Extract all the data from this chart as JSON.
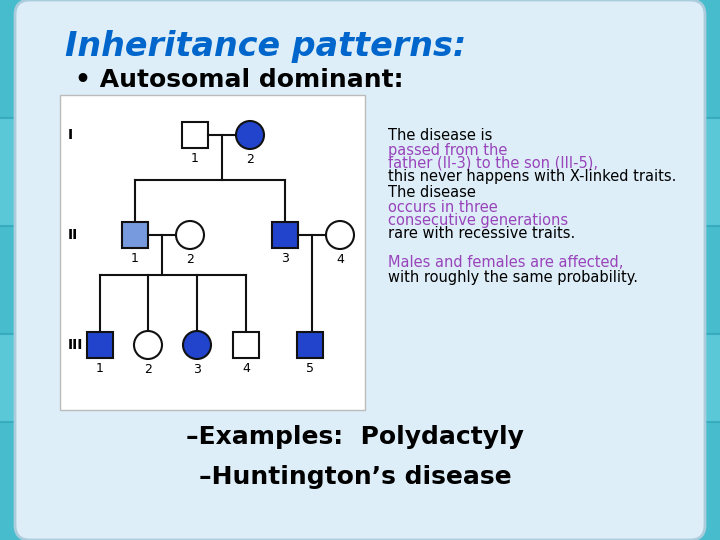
{
  "title": "Inheritance patterns:",
  "title_color": "#0066CC",
  "subtitle": "• Autosomal dominant:",
  "subtitle_color": "#000000",
  "bg_color_outer": "#5BC8D8",
  "bg_color_inner": "#C5E8F0",
  "example1": "–Examples:  Polydactyly",
  "example2": "–Huntington’s disease",
  "example_color": "#000000",
  "text1_color": "#9944BB",
  "text2_color": "#9944BB",
  "text3_color": "#9944BB",
  "blue_fill": "#2244CC",
  "light_blue_fill": "#7799DD",
  "white_fill": "#FFFFFF",
  "pedigree_bg": "#FFFFFF",
  "pedigree_border": "#BBBBBB",
  "card_bg": "#DDEEF8",
  "card_border": "#AACCDD"
}
